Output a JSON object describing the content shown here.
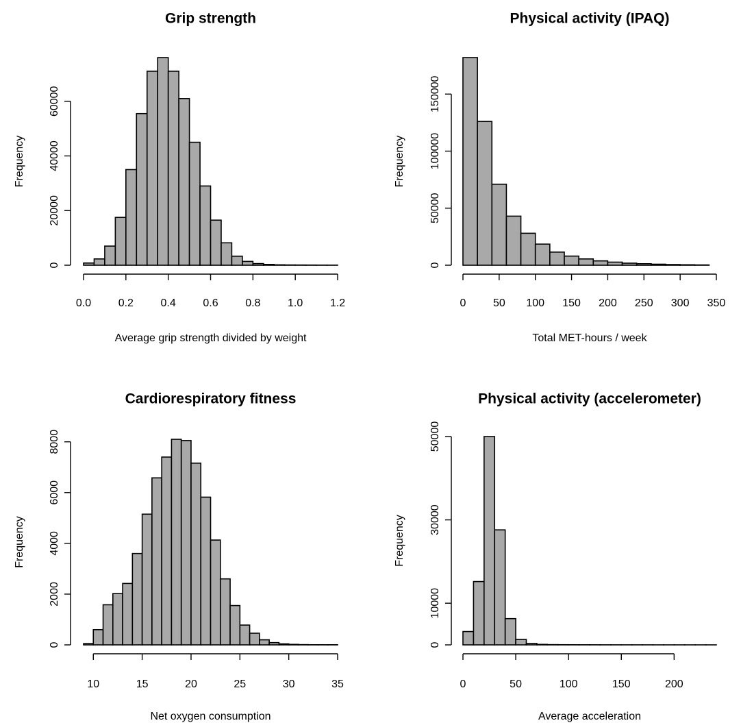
{
  "chart_data": [
    {
      "type": "bar",
      "title": "Grip strength",
      "xlabel": "Average grip strength divided by weight",
      "ylabel": "Frequency",
      "bar_color": "#a9a9a9",
      "xlim": [
        0,
        1.2
      ],
      "ylim": [
        0,
        76000
      ],
      "x_ticks": [
        0.0,
        0.2,
        0.4,
        0.6,
        0.8,
        1.0,
        1.2
      ],
      "x_tick_labels": [
        "0.0",
        "0.2",
        "0.4",
        "0.6",
        "0.8",
        "1.0",
        "1.2"
      ],
      "y_ticks": [
        0,
        20000,
        40000,
        60000
      ],
      "y_tick_labels": [
        "0",
        "20000",
        "40000",
        "60000"
      ],
      "bin_width": 0.05,
      "bin_start": 0.0,
      "values": [
        800,
        2300,
        7000,
        17500,
        35000,
        55500,
        71000,
        76000,
        71000,
        61000,
        45000,
        29000,
        16500,
        8200,
        3300,
        1400,
        600,
        300,
        150,
        100,
        80,
        60,
        40,
        30
      ]
    },
    {
      "type": "bar",
      "title": "Physical activity (IPAQ)",
      "xlabel": "Total MET-hours / week",
      "ylabel": "Frequency",
      "bar_color": "#a9a9a9",
      "xlim": [
        0,
        350
      ],
      "ylim": [
        0,
        182000
      ],
      "x_ticks": [
        0,
        50,
        100,
        150,
        200,
        250,
        300,
        350
      ],
      "x_tick_labels": [
        "0",
        "50",
        "100",
        "150",
        "200",
        "250",
        "300",
        "350"
      ],
      "y_ticks": [
        0,
        50000,
        100000,
        150000
      ],
      "y_tick_labels": [
        "0",
        "50000",
        "100000",
        "150000"
      ],
      "bin_width": 20,
      "bin_start": 0,
      "values": [
        182000,
        126000,
        71000,
        43000,
        28000,
        18500,
        11500,
        8000,
        5500,
        3800,
        2700,
        1800,
        1300,
        900,
        600,
        400,
        250
      ]
    },
    {
      "type": "bar",
      "title": "Cardiorespiratory fitness",
      "xlabel": "Net oxygen consumption",
      "ylabel": "Frequency",
      "bar_color": "#a9a9a9",
      "xlim": [
        9,
        35
      ],
      "ylim": [
        0,
        8100
      ],
      "x_ticks": [
        10,
        15,
        20,
        25,
        30,
        35
      ],
      "x_tick_labels": [
        "10",
        "15",
        "20",
        "25",
        "30",
        "35"
      ],
      "y_ticks": [
        0,
        2000,
        4000,
        6000,
        8000
      ],
      "y_tick_labels": [
        "0",
        "2000",
        "4000",
        "6000",
        "8000"
      ],
      "bin_width": 1,
      "bin_start": 9,
      "values": [
        50,
        600,
        1580,
        2020,
        2420,
        3600,
        5150,
        6580,
        7400,
        8100,
        8050,
        7160,
        5820,
        4130,
        2600,
        1550,
        780,
        460,
        200,
        90,
        40,
        20,
        10,
        5,
        5,
        5
      ]
    },
    {
      "type": "bar",
      "title": "Physical activity (accelerometer)",
      "xlabel": "Average acceleration",
      "ylabel": "Frequency",
      "bar_color": "#a9a9a9",
      "xlim": [
        0,
        240
      ],
      "ylim": [
        0,
        50000
      ],
      "x_ticks": [
        0,
        50,
        100,
        150,
        200
      ],
      "x_tick_labels": [
        "0",
        "50",
        "100",
        "150",
        "200"
      ],
      "y_ticks": [
        0,
        10000,
        30000,
        50000
      ],
      "y_tick_labels": [
        "0",
        "10000",
        "30000",
        "50000"
      ],
      "bin_width": 10,
      "bin_start": 0,
      "values": [
        3200,
        15200,
        50000,
        27600,
        6300,
        1300,
        350,
        120,
        60,
        40,
        30,
        25,
        20,
        15,
        12,
        10,
        8,
        6,
        5,
        5,
        5,
        4,
        3,
        3
      ]
    }
  ]
}
